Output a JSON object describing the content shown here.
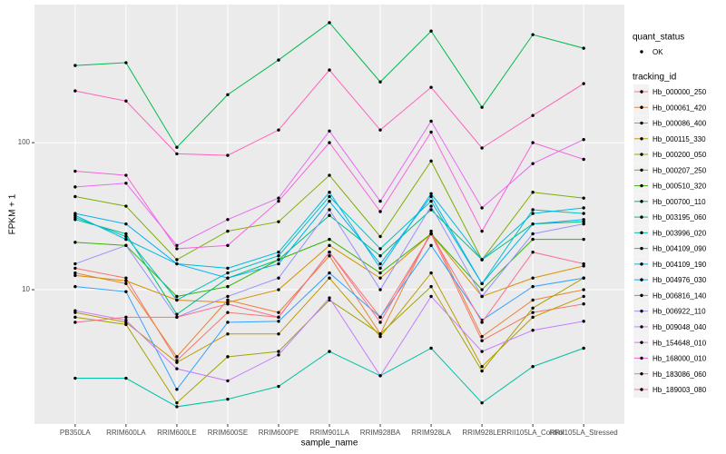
{
  "chart_data": {
    "type": "line",
    "log_scale": true,
    "grid": true,
    "xlabel": "sample_name",
    "ylabel": "FPKM + 1",
    "point_legend": {
      "title": "quant_status",
      "label": "OK"
    },
    "point_color": "#000000",
    "legend_title": "tracking_id",
    "categories": [
      "PB350LA",
      "RRIM600LA",
      "RRIM600LE",
      "RRIM600SE",
      "RRIM600PE",
      "RRIM901LA",
      "RRIM928BA",
      "RRIM928LA",
      "RRIM928LE",
      "RRII105LA_Control",
      "RRII105LA_Stressed"
    ],
    "ylim": [
      1.22,
      870
    ],
    "yticks": [
      10,
      100
    ],
    "series": [
      {
        "name": "Hb_000000_250",
        "color": "#F8766D",
        "values": [
          14,
          12,
          3.3,
          7,
          6.5,
          18,
          6.5,
          24,
          4.5,
          7,
          8
        ]
      },
      {
        "name": "Hb_000061_420",
        "color": "#EA8331",
        "values": [
          13,
          11,
          3.5,
          8.5,
          7,
          17,
          5,
          25,
          4.8,
          8.5,
          10
        ]
      },
      {
        "name": "Hb_000086_400",
        "color": "#D89000",
        "values": [
          12.5,
          11.5,
          8.5,
          8.2,
          10,
          20,
          12,
          24,
          9,
          12,
          14.5
        ]
      },
      {
        "name": "Hb_000115_330",
        "color": "#C09B00",
        "values": [
          7,
          6,
          3.2,
          5,
          5,
          12,
          4.8,
          13,
          3,
          6.5,
          9
        ]
      },
      {
        "name": "Hb_000200_050",
        "color": "#A3A500",
        "values": [
          6.5,
          5.8,
          1.7,
          3.5,
          3.8,
          8.5,
          5,
          10.5,
          2.8,
          7.5,
          12
        ]
      },
      {
        "name": "Hb_000207_250",
        "color": "#7CAE00",
        "values": [
          43,
          37,
          16,
          25,
          29,
          60,
          23,
          75,
          16,
          46,
          42
        ]
      },
      {
        "name": "Hb_000510_320",
        "color": "#39B600",
        "values": [
          21,
          20,
          9,
          10.5,
          16,
          22,
          13,
          24,
          10,
          22,
          22
        ]
      },
      {
        "name": "Hb_000700_110",
        "color": "#00BB4E",
        "values": [
          335,
          350,
          93,
          212,
          365,
          655,
          259,
          574,
          174,
          543,
          439
        ]
      },
      {
        "name": "Hb_003195_060",
        "color": "#00BF7D",
        "values": [
          30,
          24,
          6.8,
          12,
          16,
          32,
          17,
          35,
          16,
          28,
          29
        ]
      },
      {
        "name": "Hb_003996_020",
        "color": "#00C1A3",
        "values": [
          2.5,
          2.5,
          1.6,
          1.8,
          2.2,
          3.8,
          2.6,
          4,
          1.7,
          3,
          4
        ]
      },
      {
        "name": "Hb_004109_090",
        "color": "#00BFC4",
        "values": [
          31,
          23,
          8.5,
          13,
          17,
          43,
          19,
          40,
          11,
          35,
          33
        ]
      },
      {
        "name": "Hb_004109_190",
        "color": "#00BAE0",
        "values": [
          32,
          22,
          15,
          14,
          18,
          46,
          14,
          45,
          16,
          33,
          36
        ]
      },
      {
        "name": "Hb_004976_030",
        "color": "#00B0F6",
        "values": [
          33,
          28,
          15,
          12,
          15,
          40,
          15,
          43,
          11,
          28,
          30
        ]
      },
      {
        "name": "Hb_006816_140",
        "color": "#35A2FF",
        "values": [
          10.5,
          9.7,
          2.1,
          6,
          6.1,
          13,
          6.5,
          20,
          6.2,
          10.5,
          12
        ]
      },
      {
        "name": "Hb_006922_110",
        "color": "#9590FF",
        "values": [
          15,
          20,
          6.5,
          9,
          12,
          35,
          10,
          37,
          9,
          24,
          28
        ]
      },
      {
        "name": "Hb_009048_040",
        "color": "#C77CFF",
        "values": [
          7.2,
          6.2,
          2.9,
          2.4,
          3.6,
          8.8,
          2.6,
          9,
          3.8,
          5.3,
          6.1
        ]
      },
      {
        "name": "Hb_154648_010",
        "color": "#E76BF3",
        "values": [
          50,
          53,
          20,
          30,
          42,
          120,
          40,
          140,
          36,
          72,
          105
        ]
      },
      {
        "name": "Hb_168000_010",
        "color": "#FA62DB",
        "values": [
          64,
          60,
          19,
          20,
          40,
          100,
          34,
          118,
          25,
          100,
          77
        ]
      },
      {
        "name": "Hb_183086_060",
        "color": "#FF62BC",
        "values": [
          225,
          192,
          84,
          82,
          122,
          312,
          122,
          238,
          92,
          153,
          252
        ]
      },
      {
        "name": "Hb_189003_080",
        "color": "#FF6C91",
        "values": [
          6,
          6.5,
          6.5,
          8,
          6.5,
          18,
          6,
          24,
          6,
          18,
          15
        ]
      }
    ]
  }
}
